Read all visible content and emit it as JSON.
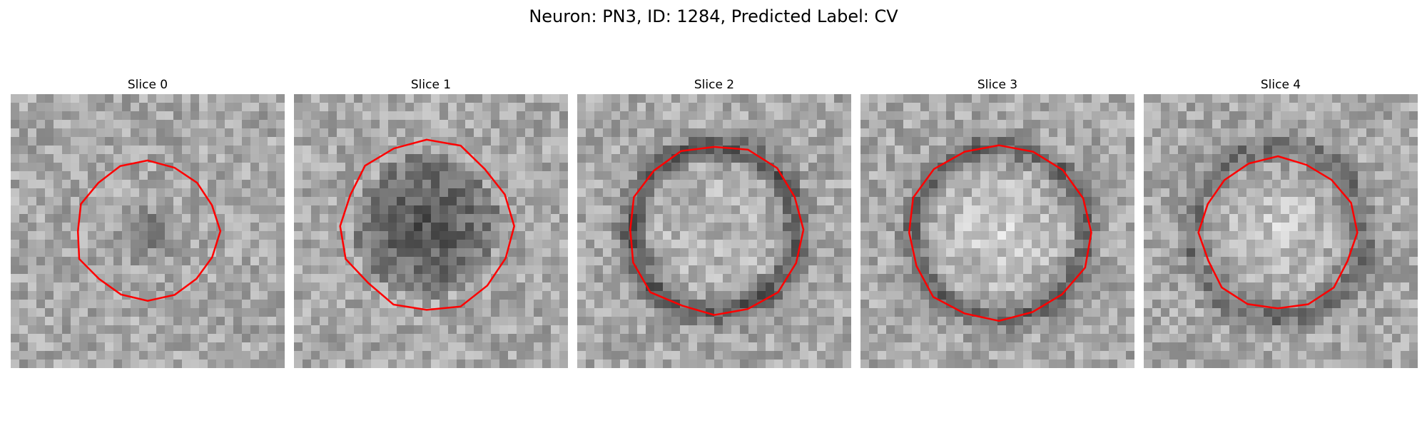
{
  "figure": {
    "title": "Neuron: PN3, ID: 1284, Predicted Label: CV",
    "colormap": "gray",
    "contour_color": "#ff0000",
    "grid_size": 32
  },
  "slices": [
    {
      "title": "Slice 0",
      "pattern": "faint-dark-blob"
    },
    {
      "title": "Slice 1",
      "pattern": "dark-blob"
    },
    {
      "title": "Slice 2",
      "pattern": "dark-ring"
    },
    {
      "title": "Slice 3",
      "pattern": "dark-ring-bright-center"
    },
    {
      "title": "Slice 4",
      "pattern": "bright-center"
    }
  ]
}
